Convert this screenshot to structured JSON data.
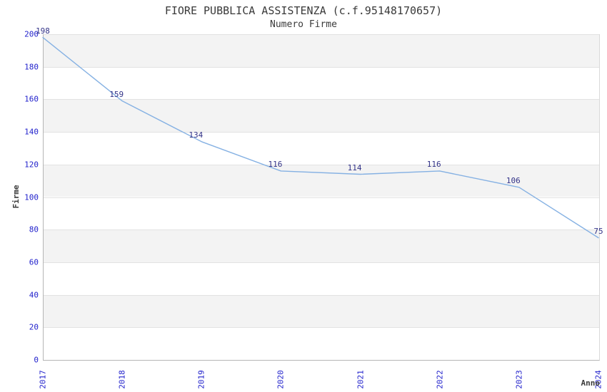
{
  "header": {
    "title": "FIORE PUBBLICA ASSISTENZA (c.f.95148170657)",
    "subtitle": "Numero Firme"
  },
  "chart_data": {
    "type": "line",
    "categories": [
      "2017",
      "2018",
      "2019",
      "2020",
      "2021",
      "2022",
      "2023",
      "2024"
    ],
    "values": [
      198,
      159,
      134,
      116,
      114,
      116,
      106,
      75
    ],
    "title": "FIORE PUBBLICA ASSISTENZA (c.f.95148170657)",
    "subtitle": "Numero Firme",
    "xlabel": "Anno",
    "ylabel": "Firme",
    "ylim": [
      0,
      200
    ],
    "yticks": [
      0,
      20,
      40,
      60,
      80,
      100,
      120,
      140,
      160,
      180,
      200
    ],
    "grid": true,
    "legend": "none",
    "colors": {
      "line": "#85b1e3",
      "tick_label": "#2222cc",
      "data_label": "#333388",
      "band_gray": "#f3f3f3",
      "band_white": "#ffffff",
      "gridline": "#e2e2e2",
      "text": "#3a3a3a"
    }
  }
}
